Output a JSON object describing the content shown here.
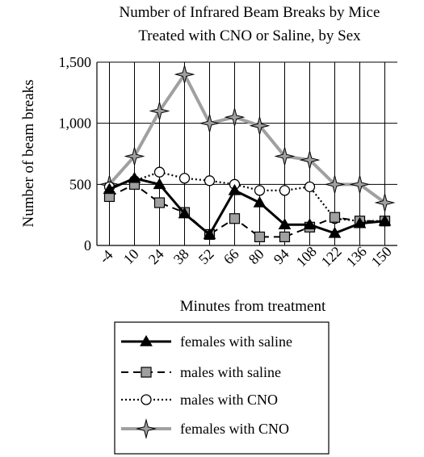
{
  "chart_data": {
    "type": "line",
    "title": "Number of Infrared Beam Breaks by Mice",
    "subtitle": "Treated with CNO or Saline, by Sex",
    "xlabel": "Minutes from treatment",
    "ylabel": "Number of beam breaks",
    "categories": [
      "-4",
      "10",
      "24",
      "38",
      "52",
      "66",
      "80",
      "94",
      "108",
      "122",
      "136",
      "150"
    ],
    "ylim": [
      0,
      1500
    ],
    "yticks": [
      0,
      500,
      1000,
      1500
    ],
    "ytick_labels": [
      "0",
      "500",
      "1,000",
      "1,500"
    ],
    "grid": true,
    "legend_position": "bottom",
    "series": [
      {
        "name": "females with saline",
        "values": [
          460,
          550,
          500,
          260,
          90,
          450,
          350,
          170,
          170,
          100,
          180,
          200
        ],
        "color": "#000000",
        "line_style": "solid",
        "marker": "triangle"
      },
      {
        "name": "males with saline",
        "values": [
          400,
          500,
          350,
          270,
          90,
          220,
          70,
          70,
          150,
          230,
          200,
          200
        ],
        "color": "#000000",
        "line_style": "dashed",
        "marker": "square"
      },
      {
        "name": "males with CNO",
        "values": [
          480,
          530,
          600,
          550,
          530,
          500,
          450,
          450,
          480,
          220,
          200,
          200
        ],
        "color": "#000000",
        "line_style": "dotted",
        "marker": "circle"
      },
      {
        "name": "females with CNO",
        "values": [
          500,
          730,
          1100,
          1400,
          1000,
          1050,
          980,
          730,
          700,
          500,
          500,
          350
        ],
        "color": "#a0a0a0",
        "line_style": "solid",
        "marker": "star"
      }
    ]
  }
}
